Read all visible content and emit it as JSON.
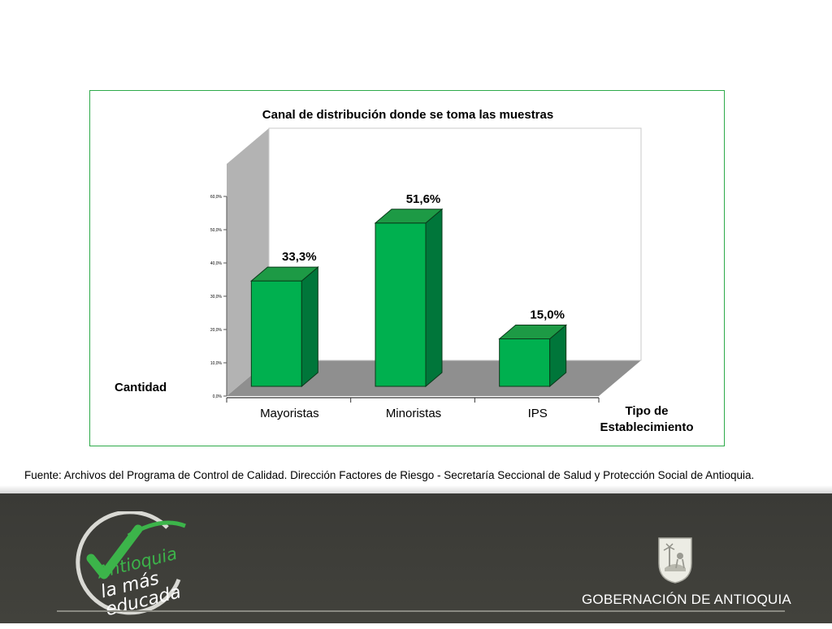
{
  "chart_data": {
    "type": "bar",
    "title": "Canal de distribución donde se toma las muestras",
    "categories": [
      "Mayoristas",
      "Minoristas",
      "IPS"
    ],
    "values": [
      33.3,
      51.6,
      15.0
    ],
    "data_labels": [
      "33,3%",
      "51,6%",
      "15,0%"
    ],
    "ylabel": "Cantidad",
    "xlabel": "Tipo de Establecimiento",
    "ylim": [
      0,
      60
    ],
    "yticks": [
      "0,0%",
      "10,0%",
      "20,0%",
      "30,0%",
      "40,0%",
      "50,0%",
      "60,0%"
    ],
    "legend": "none",
    "grid": false,
    "bar_color": "#00b04f",
    "bar_side_color": "#00763a",
    "bar_top_color": "#1d9a45"
  },
  "source_text": "Fuente: Archivos del Programa de Control de Calidad. Dirección Factores de Riesgo - Secretaría Seccional de Salud y Protección Social de Antioquia.",
  "footer": {
    "logo_lines": [
      "Antioquia",
      "la más",
      "educada"
    ],
    "government_name": "GOBERNACIÓN DE ANTIOQUIA"
  },
  "colors": {
    "frame": "#2eaa4a",
    "footer_bg": "#3e3e39",
    "logo_green": "#3cb44a"
  }
}
